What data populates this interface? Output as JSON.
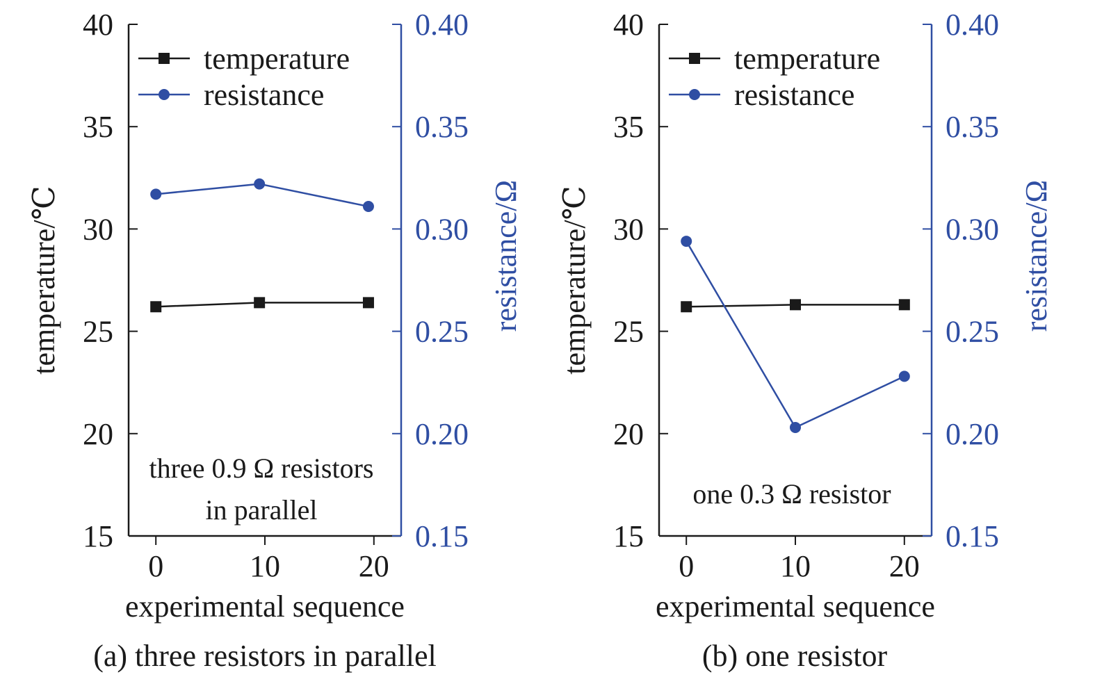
{
  "colors": {
    "temperature": "#1a1a1a",
    "resistance": "#2f4ea3"
  },
  "chart_data": [
    {
      "type": "line",
      "caption": "(a) three resistors in parallel",
      "annotation": [
        "three 0.9 Ω resistors",
        "in parallel"
      ],
      "xlabel": "experimental sequence",
      "ylabel": "temperature/℃",
      "y2label": "resistance/Ω",
      "x_ticks": [
        0,
        10,
        20
      ],
      "xlim": [
        -2.5,
        22.5
      ],
      "ylim": [
        15,
        40
      ],
      "y_ticks": [
        15,
        20,
        25,
        30,
        35,
        40
      ],
      "y2lim": [
        0.15,
        0.4
      ],
      "y2_ticks": [
        "0.15",
        "0.20",
        "0.25",
        "0.30",
        "0.35",
        "0.40"
      ],
      "legend_position": "top-left",
      "series": [
        {
          "name": "temperature",
          "axis": "left",
          "marker": "square",
          "x": [
            0,
            9.5,
            19.5
          ],
          "values": [
            26.2,
            26.4,
            26.4
          ]
        },
        {
          "name": "resistance",
          "axis": "right",
          "marker": "circle",
          "x": [
            0,
            9.5,
            19.5
          ],
          "values": [
            0.317,
            0.322,
            0.311
          ]
        }
      ]
    },
    {
      "type": "line",
      "caption": "(b) one resistor",
      "annotation": [
        "one 0.3 Ω resistor"
      ],
      "xlabel": "experimental sequence",
      "ylabel": "temperature/℃",
      "y2label": "resistance/Ω",
      "x_ticks": [
        0,
        10,
        20
      ],
      "xlim": [
        -2.5,
        22.5
      ],
      "ylim": [
        15,
        40
      ],
      "y_ticks": [
        15,
        20,
        25,
        30,
        35,
        40
      ],
      "y2lim": [
        0.15,
        0.4
      ],
      "y2_ticks": [
        "0.15",
        "0.20",
        "0.25",
        "0.30",
        "0.35",
        "0.40"
      ],
      "legend_position": "top-left",
      "series": [
        {
          "name": "temperature",
          "axis": "left",
          "marker": "square",
          "x": [
            0,
            10,
            20
          ],
          "values": [
            26.2,
            26.3,
            26.3
          ]
        },
        {
          "name": "resistance",
          "axis": "right",
          "marker": "circle",
          "x": [
            0,
            10,
            20
          ],
          "values": [
            0.294,
            0.203,
            0.228
          ]
        }
      ]
    }
  ]
}
